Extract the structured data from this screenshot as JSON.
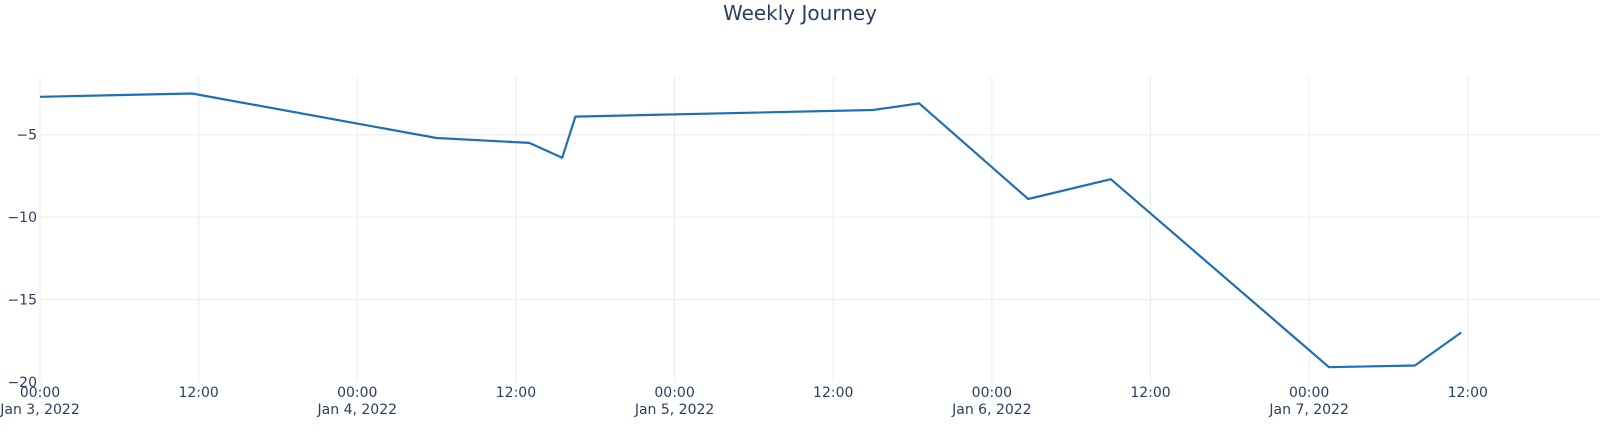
{
  "chart_data": {
    "type": "line",
    "title": "Weekly Journey",
    "xlabel": "",
    "ylabel": "",
    "grid": true,
    "legend": "none",
    "colors": {
      "line": "#1f6fb4",
      "grid": "#ebebeb",
      "text": "#2a3f5f"
    },
    "xlim": [
      "2022-01-03T00:00",
      "2022-01-07T22:00"
    ],
    "ylim": [
      -20,
      -1.5
    ],
    "y_ticks": [
      {
        "value": -5,
        "label": "−5"
      },
      {
        "value": -10,
        "label": "−10"
      },
      {
        "value": -15,
        "label": "−15"
      },
      {
        "value": -20,
        "label": "−20"
      }
    ],
    "x_ticks": [
      {
        "value": "2022-01-03T00:00",
        "time": "00:00",
        "date": "Jan 3, 2022"
      },
      {
        "value": "2022-01-03T12:00",
        "time": "12:00",
        "date": ""
      },
      {
        "value": "2022-01-04T00:00",
        "time": "00:00",
        "date": "Jan 4, 2022"
      },
      {
        "value": "2022-01-04T12:00",
        "time": "12:00",
        "date": ""
      },
      {
        "value": "2022-01-05T00:00",
        "time": "00:00",
        "date": "Jan 5, 2022"
      },
      {
        "value": "2022-01-05T12:00",
        "time": "12:00",
        "date": ""
      },
      {
        "value": "2022-01-06T00:00",
        "time": "00:00",
        "date": "Jan 6, 2022"
      },
      {
        "value": "2022-01-06T12:00",
        "time": "12:00",
        "date": ""
      },
      {
        "value": "2022-01-07T00:00",
        "time": "00:00",
        "date": "Jan 7, 2022"
      },
      {
        "value": "2022-01-07T12:00",
        "time": "12:00",
        "date": ""
      }
    ],
    "series": [
      {
        "x": [
          "2022-01-03T00:00",
          "2022-01-03T11:30",
          "2022-01-04T06:00",
          "2022-01-04T13:00",
          "2022-01-04T15:30",
          "2022-01-04T16:30",
          "2022-01-05T15:00",
          "2022-01-05T18:30",
          "2022-01-06T02:45",
          "2022-01-06T09:00",
          "2022-01-07T01:30",
          "2022-01-07T08:00",
          "2022-01-07T11:30"
        ],
        "y": [
          -2.7,
          -2.5,
          -5.2,
          -5.5,
          -6.4,
          -3.9,
          -3.5,
          -3.1,
          -8.9,
          -7.7,
          -19.1,
          -19.0,
          -17.0
        ]
      }
    ]
  }
}
